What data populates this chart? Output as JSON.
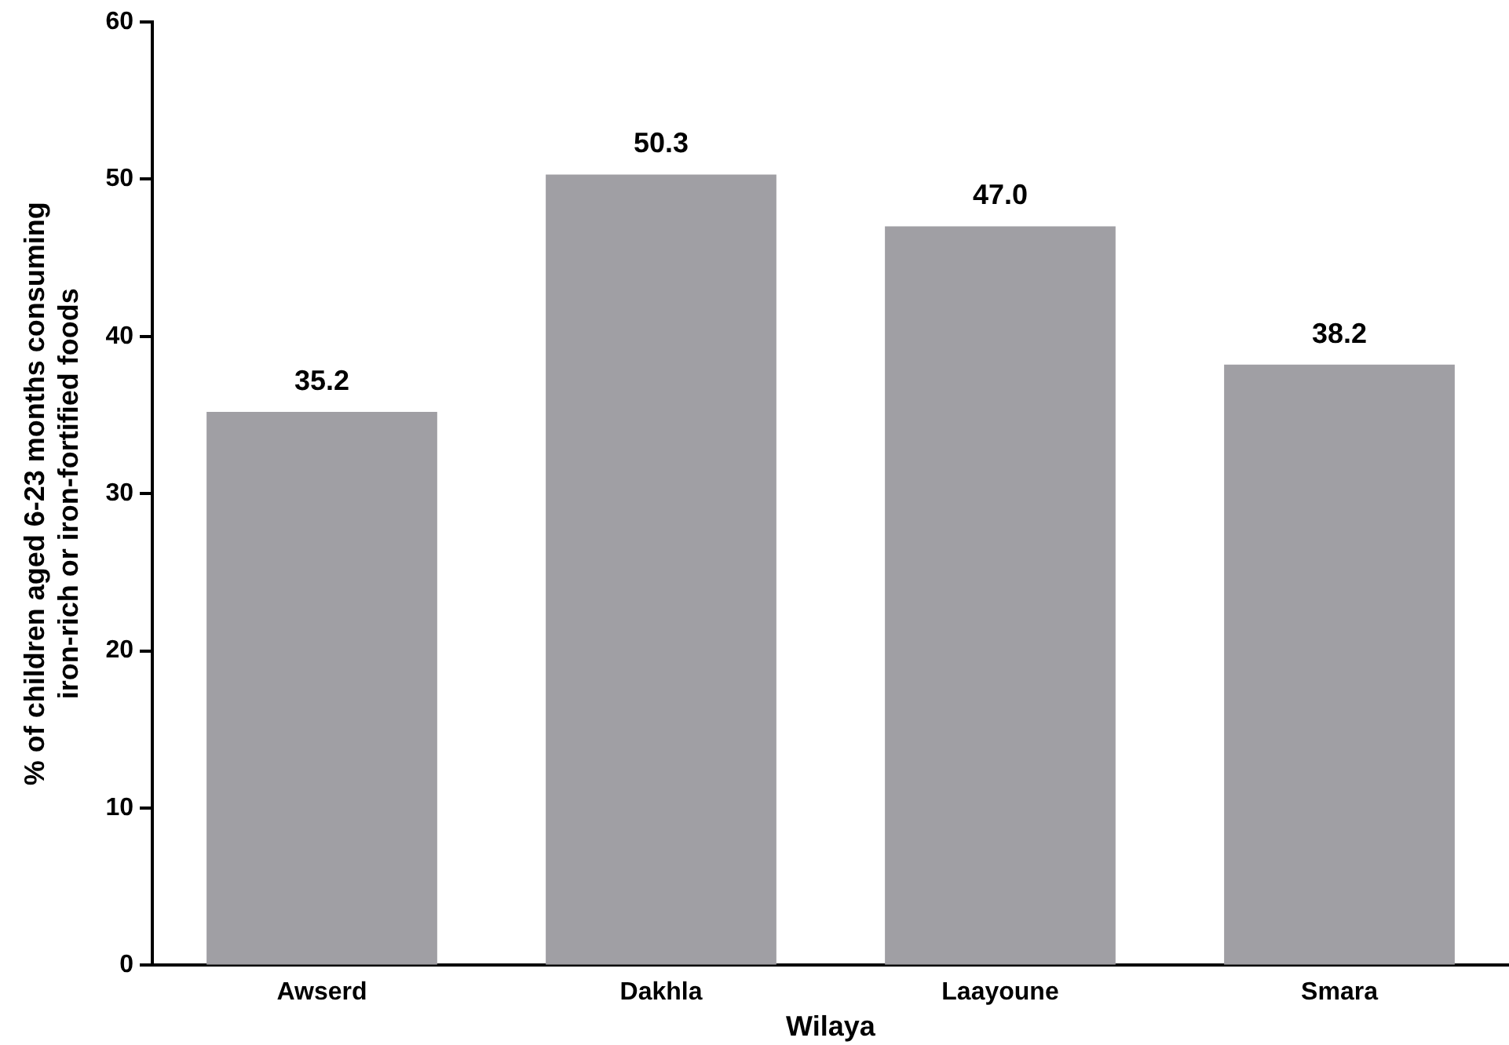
{
  "chart_data": {
    "type": "bar",
    "xlabel": "Wilaya",
    "ylabel": "% of children aged 6-23 months consuming\niron-rich or iron-fortified foods",
    "categories": [
      "Awserd",
      "Dakhla",
      "Laayoune",
      "Smara"
    ],
    "values": [
      35.2,
      50.3,
      47.0,
      38.2
    ],
    "value_labels": [
      "35.2",
      "50.3",
      "47.0",
      "38.2"
    ],
    "color": "#a09fa4",
    "ylim": [
      0,
      60
    ],
    "yticks": [
      0,
      10,
      20,
      30,
      40,
      50,
      60
    ],
    "grid": false,
    "legend": false
  }
}
